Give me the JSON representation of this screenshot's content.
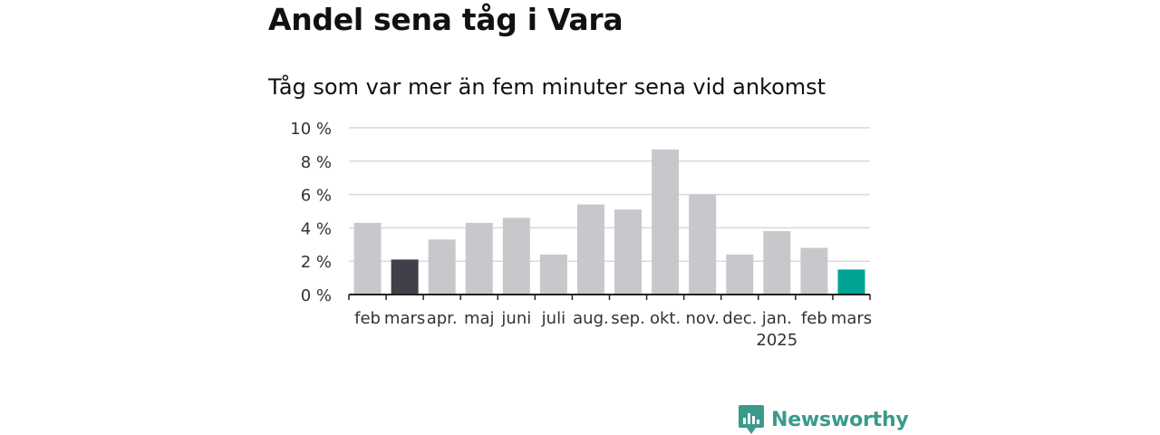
{
  "header": {
    "title": "Andel sena tåg i Vara",
    "subtitle": "Tåg som var mer än fem minuter sena vid ankomst"
  },
  "brand": {
    "name": "Newsworthy",
    "color": "#3a9a8c"
  },
  "colors": {
    "bar_default": "#c8c7cc",
    "bar_previous_year": "#403f4a",
    "bar_latest": "#00a394",
    "grid": "#d9d9d9",
    "axis": "#222222"
  },
  "chart_data": {
    "type": "bar",
    "ylim": [
      0,
      10
    ],
    "yticks": [
      0,
      2,
      4,
      6,
      8,
      10
    ],
    "ytick_labels": [
      "0 %",
      "2 %",
      "4 %",
      "6 %",
      "8 %",
      "10 %"
    ],
    "categories": [
      "feb",
      "mars",
      "apr.",
      "maj",
      "juni",
      "juli",
      "aug.",
      "sep.",
      "okt.",
      "nov.",
      "dec.",
      "jan.",
      "feb",
      "mars"
    ],
    "year_label": {
      "category_index": 11,
      "text": "2025"
    },
    "values": [
      4.3,
      2.1,
      3.3,
      4.3,
      4.6,
      2.4,
      5.4,
      5.1,
      8.7,
      6.0,
      2.4,
      3.8,
      2.8,
      1.5
    ],
    "highlights": {
      "1": "bar_previous_year",
      "13": "bar_latest"
    },
    "grid": true
  }
}
